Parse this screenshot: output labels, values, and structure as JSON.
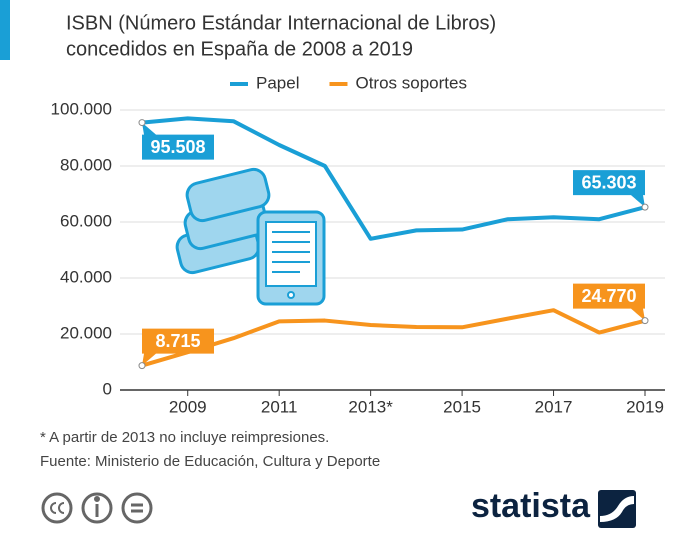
{
  "chart_data": {
    "type": "line",
    "title": [
      "ISBN (Número Estándar Internacional de Libros)",
      "concedidos en España de 2008 a 2019"
    ],
    "x": [
      2008,
      2009,
      2010,
      2011,
      2012,
      2013,
      2014,
      2015,
      2016,
      2017,
      2018,
      2019
    ],
    "series": [
      {
        "name": "Papel",
        "color": "#1a9fd6",
        "values": [
          95508,
          97000,
          96000,
          87500,
          80000,
          54000,
          57000,
          57300,
          61000,
          61700,
          61000,
          65303
        ],
        "value_labels": [
          "95.508",
          null,
          null,
          null,
          null,
          null,
          null,
          null,
          null,
          null,
          null,
          "65.303"
        ]
      },
      {
        "name": "Otros soportes",
        "color": "#f7941d",
        "values": [
          8715,
          13500,
          18500,
          24500,
          24800,
          23200,
          22500,
          22400,
          25500,
          28500,
          20500,
          24770
        ],
        "value_labels": [
          "8.715",
          null,
          null,
          null,
          null,
          null,
          null,
          null,
          null,
          null,
          null,
          "24.770"
        ]
      }
    ],
    "xlim": [
      2008,
      2019
    ],
    "xticks": [
      2009,
      2011,
      {
        "value": 2013,
        "label": "2013*"
      },
      2015,
      2017,
      2019
    ],
    "ylim": [
      0,
      100000
    ],
    "yticks": [
      0,
      {
        "value": 20000,
        "label": "20.000"
      },
      {
        "value": 40000,
        "label": "40.000"
      },
      {
        "value": 60000,
        "label": "60.000"
      },
      {
        "value": 80000,
        "label": "80.000"
      },
      {
        "value": 100000,
        "label": "100.000"
      }
    ],
    "grid": true,
    "legend": "top",
    "footnote": "* A partir de 2013 no incluye reimpresiones.",
    "source": "Fuente: Ministerio de Educación, Cultura y Deporte",
    "brand": "statista"
  }
}
